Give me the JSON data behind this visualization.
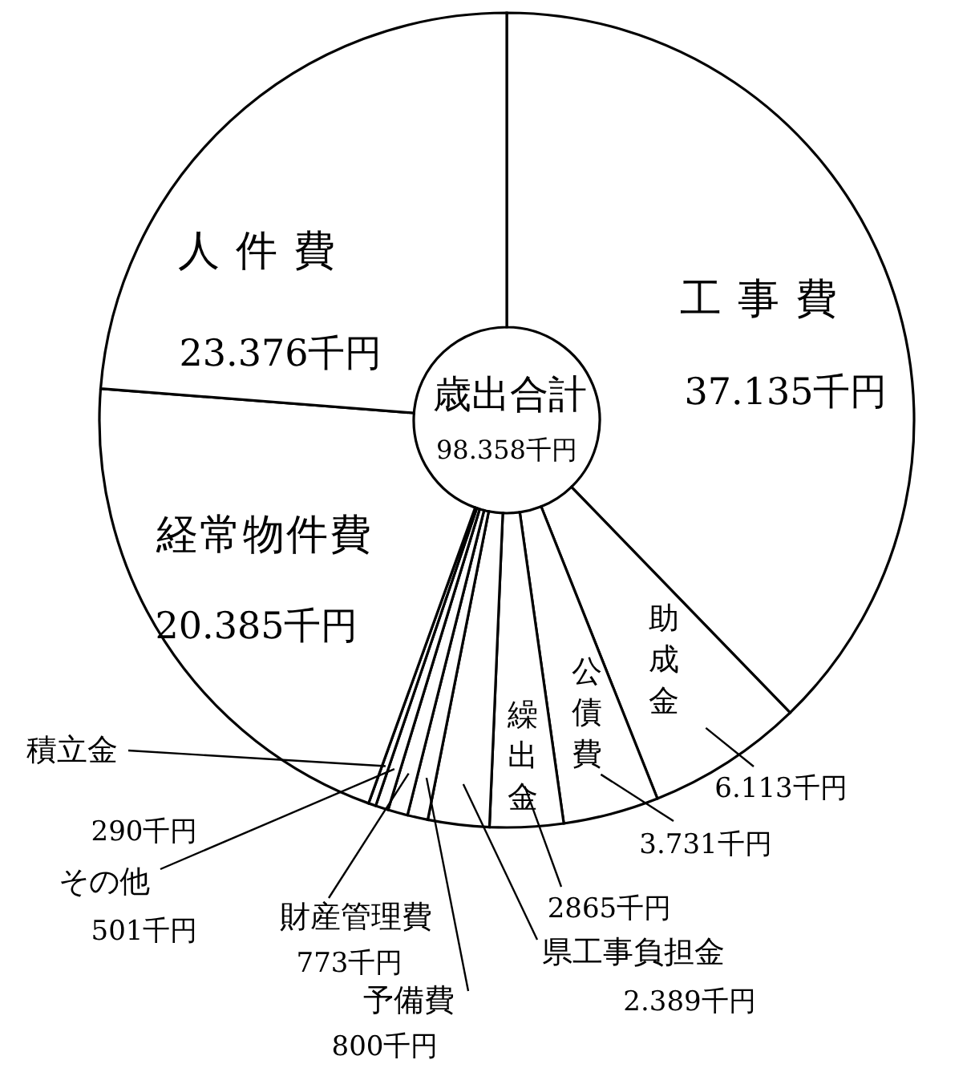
{
  "chart_data": {
    "type": "donut",
    "title": "歳出合計",
    "subtitle": "98.358千円",
    "categories": [
      "工事費",
      "助成金",
      "公債費",
      "繰出金",
      "県工事負担金",
      "予備費",
      "財産管理費",
      "その他",
      "積立金",
      "経常物件費",
      "人件費"
    ],
    "values": [
      37135,
      6113,
      3731,
      2865,
      2389,
      800,
      773,
      501,
      290,
      20385,
      23376
    ],
    "value_labels": [
      "37.135千円",
      "6.113千円",
      "3.731千円",
      "2865千円",
      "2.389千円",
      "800千円",
      "773千円",
      "501千円",
      "290千円",
      "20.385千円",
      "23.376千円"
    ],
    "colors": [
      "#ffffff",
      "#ffffff",
      "#ffffff",
      "#ffffff",
      "#ffffff",
      "#ffffff",
      "#ffffff",
      "#ffffff",
      "#ffffff",
      "#ffffff",
      "#ffffff"
    ]
  }
}
